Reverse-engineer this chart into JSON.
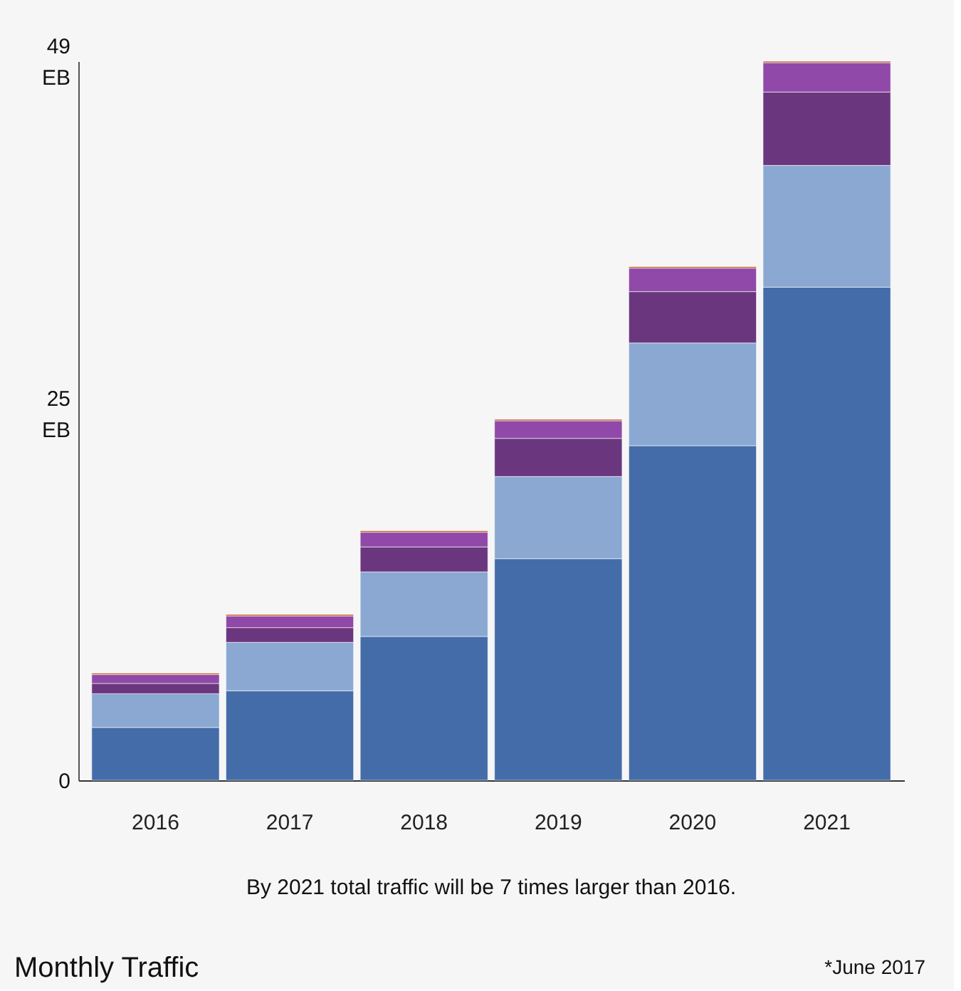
{
  "chart_data": {
    "type": "bar",
    "stacked": true,
    "title": "Monthly Traffic",
    "categories": [
      "2016",
      "2017",
      "2018",
      "2019",
      "2020",
      "2021"
    ],
    "series": [
      {
        "color": "#446ca9",
        "values": [
          3.6,
          6.1,
          9.8,
          15.1,
          22.8,
          33.6
        ]
      },
      {
        "color": "#8aa8d2",
        "values": [
          2.3,
          3.3,
          4.4,
          5.6,
          7.0,
          8.3
        ]
      },
      {
        "color": "#6a377f",
        "values": [
          0.7,
          1.0,
          1.7,
          2.6,
          3.5,
          5.0
        ]
      },
      {
        "color": "#9049a9",
        "values": [
          0.6,
          0.8,
          1.0,
          1.2,
          1.6,
          2.0
        ]
      },
      {
        "color": "#c0602a",
        "values": [
          0.1,
          0.1,
          0.1,
          0.1,
          0.1,
          0.1
        ]
      }
    ],
    "ylim": [
      0,
      49
    ],
    "yticks": [
      0,
      {
        "value": 25,
        "label": "25\nEB"
      },
      {
        "value": 49,
        "label": "49\nEB"
      }
    ],
    "grid": false,
    "legend": false,
    "annotations": [
      "By 2021 total traffic will be 7 times larger than 2016.",
      "*June 2017"
    ]
  }
}
